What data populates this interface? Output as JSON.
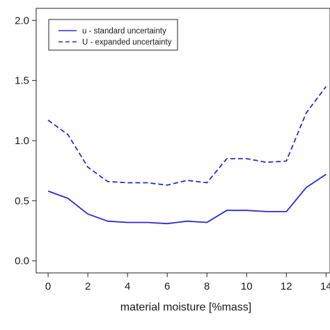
{
  "chart_data": {
    "type": "line",
    "xlabel": "material moisture [%mass]",
    "ylabel": "",
    "xlim": [
      -0.6,
      14.2
    ],
    "ylim": [
      -0.1,
      2.1
    ],
    "x_ticks": [
      0,
      2,
      4,
      6,
      8,
      10,
      12,
      14
    ],
    "y_ticks": [
      "0.0",
      "0.5",
      "1.0",
      "1.5",
      "2.0"
    ],
    "grid": false,
    "legend_position": "top-left",
    "x": [
      0,
      1,
      2,
      3,
      4,
      5,
      6,
      7,
      8,
      9,
      10,
      11,
      12,
      13,
      14
    ],
    "series": [
      {
        "name": "u - standard uncertainty",
        "style": "solid",
        "color": "#2b2bd0",
        "values": [
          0.58,
          0.52,
          0.39,
          0.33,
          0.32,
          0.32,
          0.31,
          0.33,
          0.32,
          0.42,
          0.42,
          0.41,
          0.41,
          0.61,
          0.72
        ]
      },
      {
        "name": "U - expanded uncertainty",
        "style": "dashed",
        "color": "#2b2bd0",
        "values": [
          1.17,
          1.05,
          0.78,
          0.66,
          0.65,
          0.65,
          0.63,
          0.67,
          0.65,
          0.85,
          0.85,
          0.82,
          0.83,
          1.23,
          1.45
        ]
      }
    ]
  }
}
